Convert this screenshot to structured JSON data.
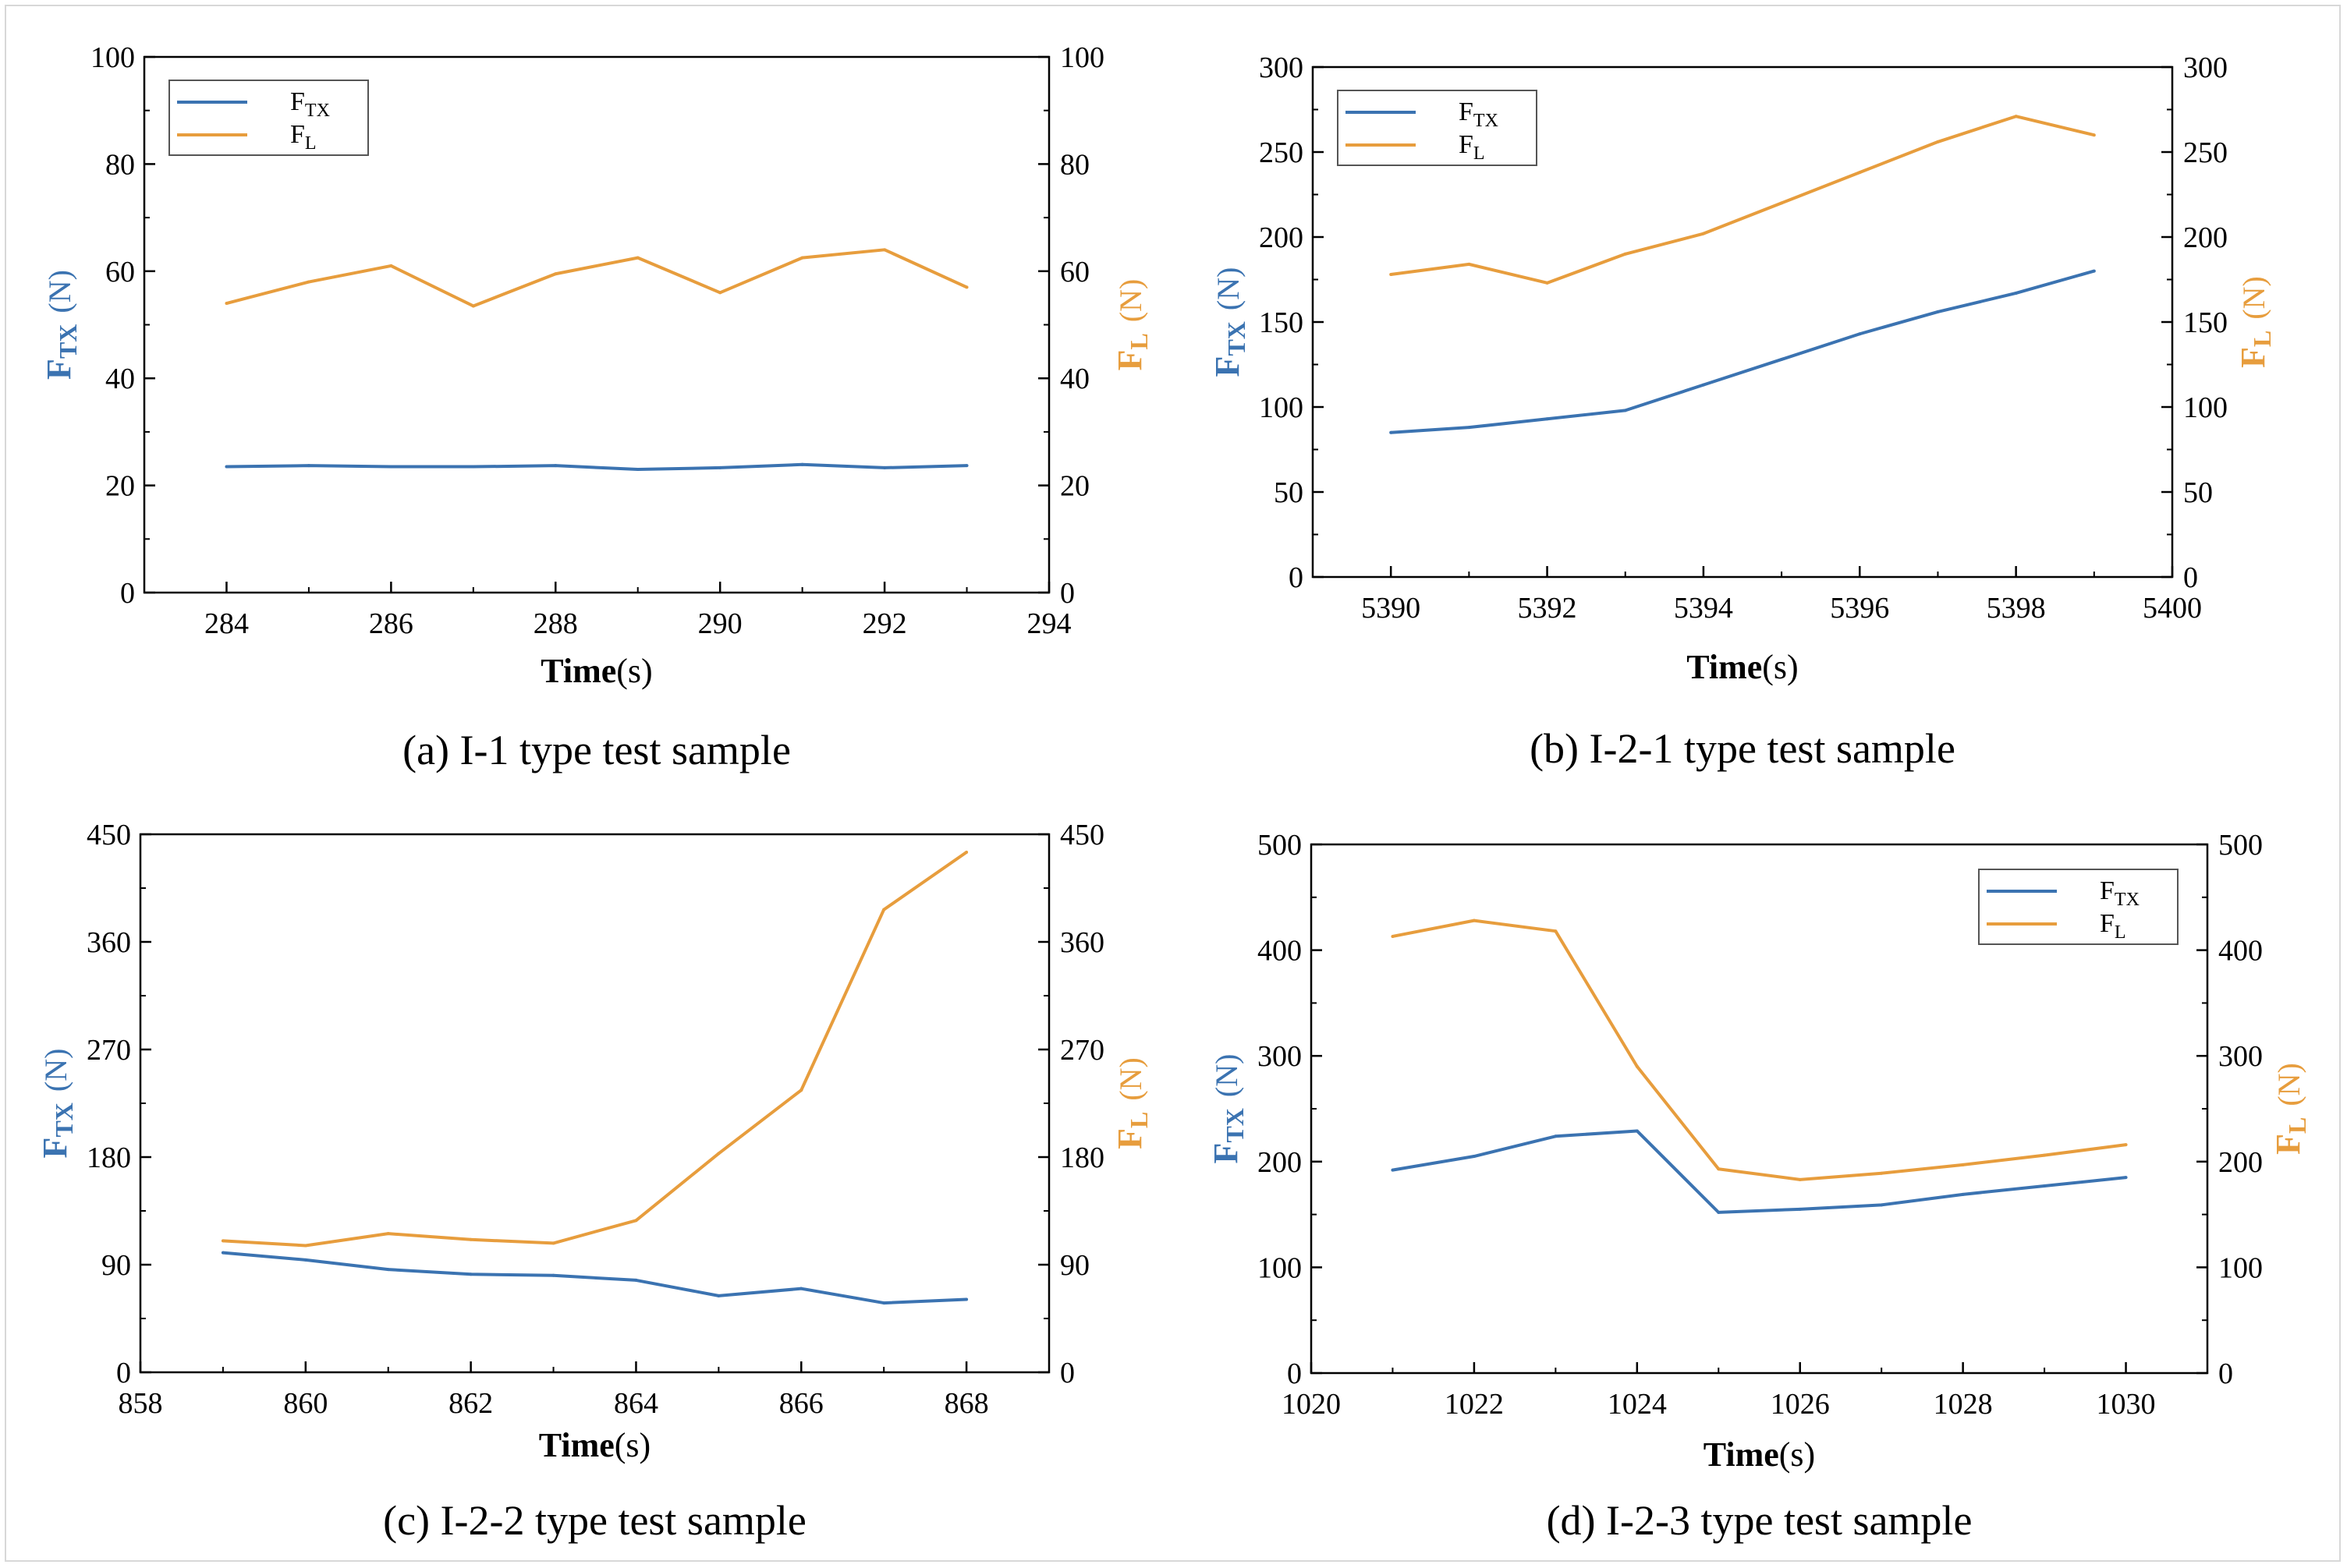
{
  "colors": {
    "ftx": "#3b73b1",
    "fl": "#e79d3d",
    "axis": "#000000"
  },
  "chart_data": [
    {
      "type": "line",
      "caption": "(a) I-1 type test sample",
      "xlabel_bold": "Time",
      "xlabel_unit": "(s)",
      "ylabel_left": {
        "main": "F",
        "sub": "TX",
        "unit": "(N)"
      },
      "ylabel_right": {
        "main": "F",
        "sub": "L",
        "unit": "(N)"
      },
      "xlim": [
        283,
        294
      ],
      "xticks": [
        284,
        286,
        288,
        290,
        292,
        294
      ],
      "ylim": [
        0,
        100
      ],
      "yticks": [
        0,
        20,
        40,
        60,
        80,
        100
      ],
      "ylim_right": [
        0,
        100
      ],
      "yticks_right": [
        0,
        20,
        40,
        60,
        80,
        100
      ],
      "legend": {
        "position": "top-left",
        "entries": [
          {
            "main": "F",
            "sub": "TX"
          },
          {
            "main": "F",
            "sub": "L"
          }
        ]
      },
      "x": [
        284,
        285,
        286,
        287,
        288,
        289,
        290,
        291,
        292,
        293
      ],
      "series": [
        {
          "name": "FTX",
          "axis": "left",
          "values": [
            23.5,
            23.7,
            23.5,
            23.5,
            23.7,
            23.0,
            23.3,
            23.9,
            23.3,
            23.7
          ]
        },
        {
          "name": "FL",
          "axis": "right",
          "values": [
            54,
            58,
            61,
            53.5,
            59.5,
            62.5,
            56,
            62.5,
            64,
            57
          ]
        }
      ]
    },
    {
      "type": "line",
      "caption": "(b) I-2-1 type test sample",
      "xlabel_bold": "Time",
      "xlabel_unit": "(s)",
      "ylabel_left": {
        "main": "F",
        "sub": "TX",
        "unit": "(N)"
      },
      "ylabel_right": {
        "main": "F",
        "sub": "L",
        "unit": "(N)"
      },
      "xlim": [
        5389,
        5400
      ],
      "xticks": [
        5390,
        5392,
        5394,
        5396,
        5398,
        5400
      ],
      "ylim": [
        0,
        300
      ],
      "yticks": [
        0,
        50,
        100,
        150,
        200,
        250,
        300
      ],
      "ylim_right": [
        0,
        300
      ],
      "yticks_right": [
        0,
        50,
        100,
        150,
        200,
        250,
        300
      ],
      "legend": {
        "position": "top-left",
        "entries": [
          {
            "main": "F",
            "sub": "TX"
          },
          {
            "main": "F",
            "sub": "L"
          }
        ]
      },
      "x": [
        5390,
        5391,
        5392,
        5393,
        5394,
        5395,
        5396,
        5397,
        5398,
        5399
      ],
      "series": [
        {
          "name": "FTX",
          "axis": "left",
          "values": [
            85,
            88,
            93,
            98,
            113,
            128,
            143,
            156,
            167,
            180
          ]
        },
        {
          "name": "FL",
          "axis": "right",
          "values": [
            178,
            184,
            173,
            190,
            202,
            220,
            238,
            256,
            271,
            260
          ]
        }
      ]
    },
    {
      "type": "line",
      "caption": "(c) I-2-2 type test sample",
      "xlabel_bold": "Time",
      "xlabel_unit": "(s)",
      "ylabel_left": {
        "main": "F",
        "sub": "TX",
        "unit": "(N)"
      },
      "ylabel_right": {
        "main": "F",
        "sub": "L",
        "unit": "(N)"
      },
      "xlim": [
        858,
        869
      ],
      "xticks": [
        858,
        860,
        862,
        864,
        866,
        868
      ],
      "ylim": [
        0,
        450
      ],
      "yticks": [
        0,
        90,
        180,
        270,
        360,
        450
      ],
      "ylim_right": [
        0,
        450
      ],
      "yticks_right": [
        0,
        90,
        180,
        270,
        360,
        450
      ],
      "legend": null,
      "x": [
        859,
        860,
        861,
        862,
        863,
        864,
        865,
        866,
        867,
        868
      ],
      "series": [
        {
          "name": "FTX",
          "axis": "left",
          "values": [
            100,
            94,
            86,
            82,
            81,
            77,
            64,
            70,
            58,
            61
          ]
        },
        {
          "name": "FL",
          "axis": "right",
          "values": [
            110,
            106,
            116,
            111,
            108,
            127,
            183,
            236,
            387,
            435
          ]
        }
      ]
    },
    {
      "type": "line",
      "caption": "(d) I-2-3 type test sample",
      "xlabel_bold": "Time",
      "xlabel_unit": "(s)",
      "ylabel_left": {
        "main": "F",
        "sub": "TX",
        "unit": "(N)"
      },
      "ylabel_right": {
        "main": "F",
        "sub": "L",
        "unit": "(N)"
      },
      "xlim": [
        1020,
        1031
      ],
      "xticks": [
        1020,
        1022,
        1024,
        1026,
        1028,
        1030
      ],
      "ylim": [
        0,
        500
      ],
      "yticks": [
        0,
        100,
        200,
        300,
        400,
        500
      ],
      "ylim_right": [
        0,
        500
      ],
      "yticks_right": [
        0,
        100,
        200,
        300,
        400,
        500
      ],
      "legend": {
        "position": "top-right",
        "entries": [
          {
            "main": "F",
            "sub": "TX"
          },
          {
            "main": "F",
            "sub": "L"
          }
        ]
      },
      "x": [
        1021,
        1022,
        1023,
        1024,
        1025,
        1026,
        1027,
        1028,
        1029,
        1030
      ],
      "series": [
        {
          "name": "FTX",
          "axis": "left",
          "values": [
            192,
            205,
            224,
            229,
            152,
            155,
            159,
            169,
            177,
            185
          ]
        },
        {
          "name": "FL",
          "axis": "right",
          "values": [
            413,
            428,
            418,
            290,
            193,
            183,
            189,
            197,
            206,
            216
          ]
        }
      ]
    }
  ]
}
